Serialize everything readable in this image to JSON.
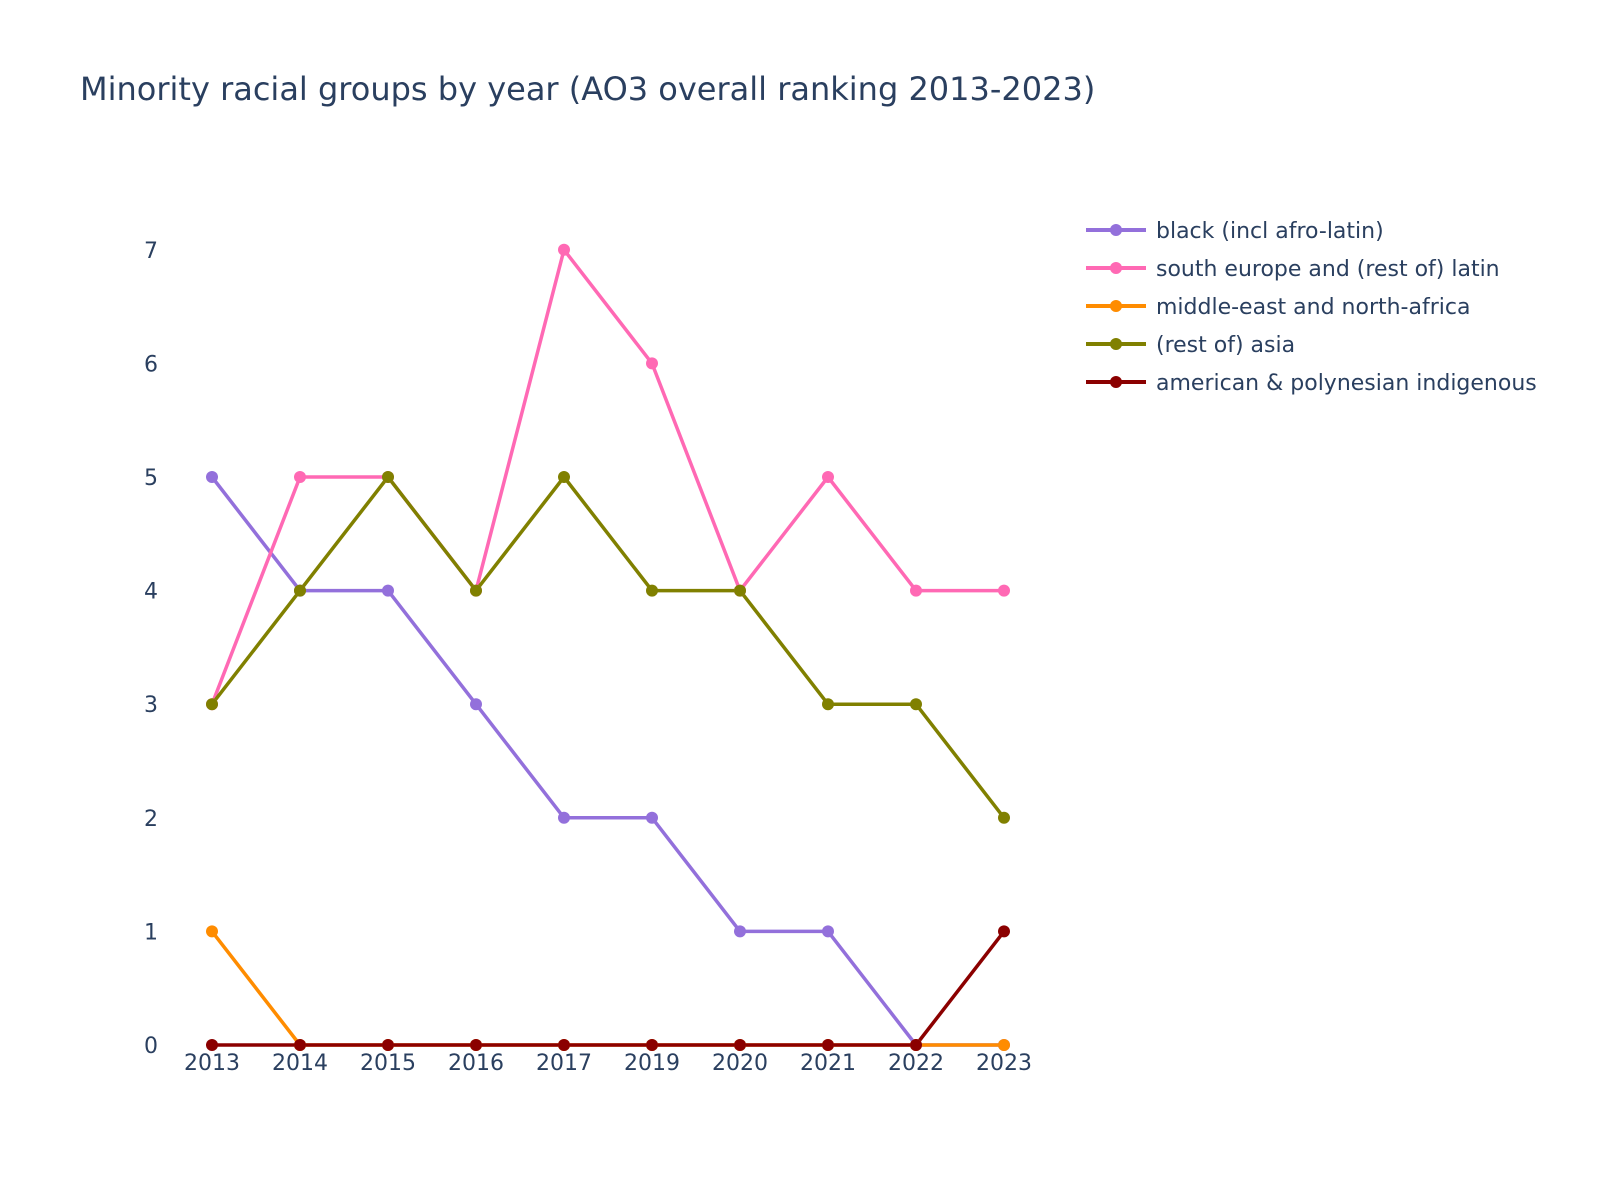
{
  "chart_data": {
    "type": "line",
    "title": "Minority racial groups by year (AO3 overall ranking 2013-2023)",
    "xlabel": "",
    "ylabel": "",
    "categories": [
      "2013",
      "2014",
      "2015",
      "2016",
      "2017",
      "2019",
      "2020",
      "2021",
      "2022",
      "2023"
    ],
    "y_ticks": [
      "0",
      "1",
      "2",
      "3",
      "4",
      "5",
      "6",
      "7"
    ],
    "ylim": [
      0,
      7.6
    ],
    "grid": false,
    "legend_position": "top-right",
    "series": [
      {
        "name": "black (incl afro-latin)",
        "color": "#9370db",
        "values": [
          5,
          4,
          4,
          3,
          2,
          2,
          1,
          1,
          0,
          0
        ]
      },
      {
        "name": "south europe and (rest of) latin",
        "color": "#ff69b4",
        "values": [
          3,
          5,
          5,
          4,
          7,
          6,
          4,
          5,
          4,
          4
        ]
      },
      {
        "name": "middle-east and north-africa",
        "color": "#ff8c00",
        "values": [
          1,
          0,
          0,
          0,
          0,
          0,
          0,
          0,
          0,
          0
        ]
      },
      {
        "name": "(rest of) asia",
        "color": "#808000",
        "values": [
          3,
          4,
          5,
          4,
          5,
          4,
          4,
          3,
          3,
          2
        ]
      },
      {
        "name": "american & polynesian indigenous",
        "color": "#8b0000",
        "values": [
          0,
          0,
          0,
          0,
          0,
          0,
          0,
          0,
          0,
          1
        ]
      }
    ]
  }
}
